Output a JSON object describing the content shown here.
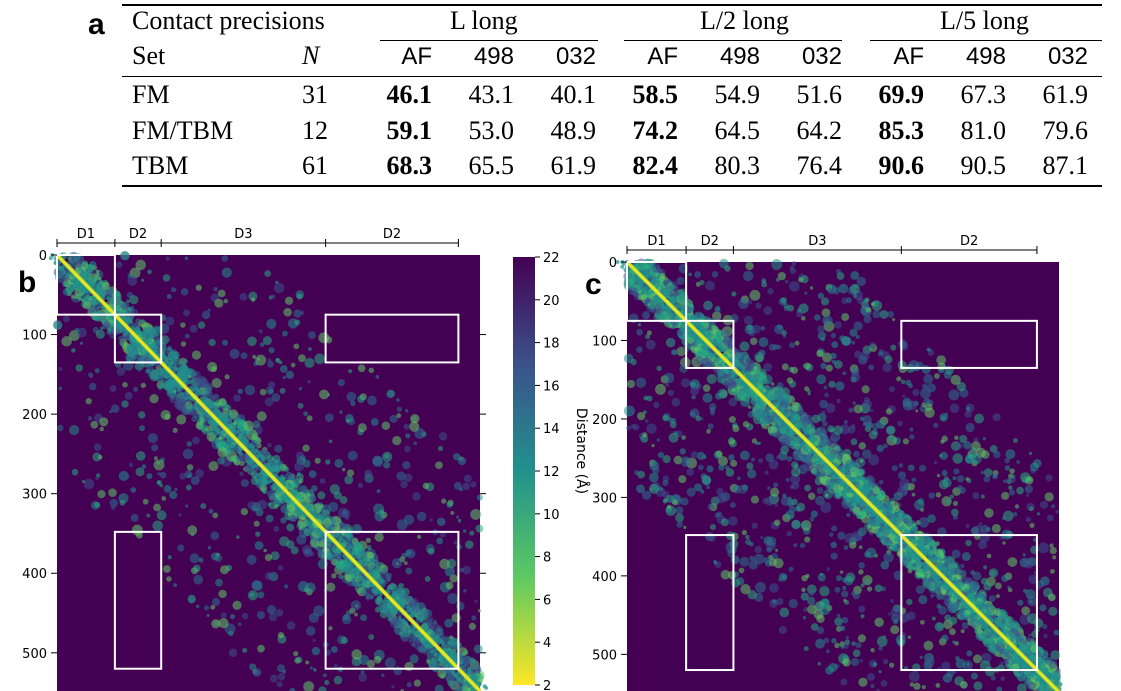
{
  "panel_a": {
    "letter": "a",
    "caption": "Contact precisions",
    "groups": [
      "L long",
      "L/2 long",
      "L/5 long"
    ],
    "set_header": "Set",
    "n_header": "N",
    "subcolumns": [
      "AF",
      "498",
      "032"
    ],
    "rows": [
      {
        "set": "FM",
        "n": "31",
        "values": [
          "46.1",
          "43.1",
          "40.1",
          "58.5",
          "54.9",
          "51.6",
          "69.9",
          "67.3",
          "61.9"
        ]
      },
      {
        "set": "FM/TBM",
        "n": "12",
        "values": [
          "59.1",
          "53.0",
          "48.9",
          "74.2",
          "64.5",
          "64.2",
          "85.3",
          "81.0",
          "79.6"
        ]
      },
      {
        "set": "TBM",
        "n": "61",
        "values": [
          "68.3",
          "65.5",
          "61.9",
          "82.4",
          "80.3",
          "76.4",
          "90.6",
          "90.5",
          "87.1"
        ]
      }
    ],
    "bold_subcolumn": "AF"
  },
  "panel_b": {
    "letter": "b",
    "domains": [
      "D1",
      "D2",
      "D3",
      "D2"
    ],
    "domain_boundaries": [
      0,
      75,
      135,
      348,
      520
    ],
    "axis_ticks": [
      0,
      100,
      200,
      300,
      400,
      500
    ],
    "matrix_size": 548,
    "boxes": [
      [
        0,
        75,
        0,
        75
      ],
      [
        75,
        135,
        75,
        135
      ],
      [
        348,
        520,
        75,
        135
      ],
      [
        75,
        135,
        348,
        520
      ],
      [
        348,
        520,
        348,
        520
      ]
    ]
  },
  "panel_c": {
    "letter": "c",
    "domains": [
      "D1",
      "D2",
      "D3",
      "D2"
    ],
    "domain_boundaries": [
      0,
      75,
      135,
      348,
      520
    ],
    "axis_ticks": [
      0,
      100,
      200,
      300,
      400,
      500
    ],
    "matrix_size": 548,
    "boxes": [
      [
        0,
        75,
        0,
        75
      ],
      [
        75,
        135,
        75,
        135
      ],
      [
        348,
        520,
        75,
        135
      ],
      [
        75,
        135,
        348,
        520
      ],
      [
        348,
        520,
        348,
        520
      ]
    ]
  },
  "colorbar": {
    "label": "Distance (Å)",
    "ticks": [
      2,
      4,
      6,
      8,
      10,
      12,
      14,
      16,
      18,
      20,
      22
    ],
    "range": [
      2,
      22
    ],
    "colors": [
      "#fde725",
      "#5ec962",
      "#21918c",
      "#3b528b",
      "#440154"
    ]
  },
  "colors": {
    "map_background": "#440154",
    "box": "#ffffff"
  }
}
